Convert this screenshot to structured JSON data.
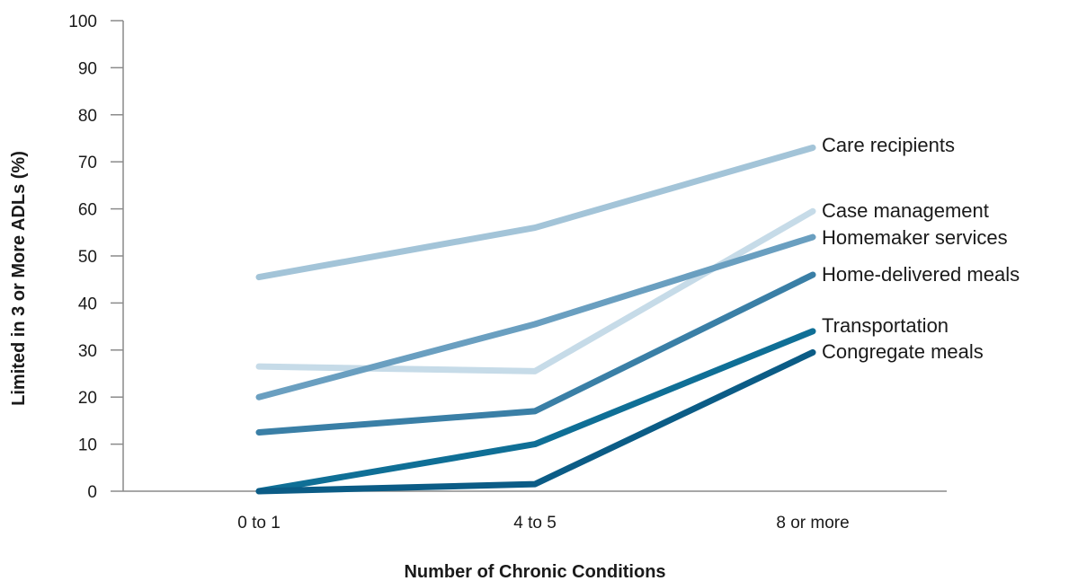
{
  "chart_data": {
    "type": "line",
    "categories": [
      "0 to 1",
      "4 to 5",
      "8 or more"
    ],
    "xlabel": "Number of Chronic Conditions",
    "ylabel": "Limited in 3 or More ADLs (%)",
    "ylim": [
      0,
      100
    ],
    "yticks": [
      0,
      10,
      20,
      30,
      40,
      50,
      60,
      70,
      80,
      90,
      100
    ],
    "grid": false,
    "legend": "direct labels at right end of lines",
    "series": [
      {
        "name": "Care recipients",
        "values": [
          45.5,
          56,
          73
        ],
        "color": "#a3c4d8"
      },
      {
        "name": "Case management",
        "values": [
          26.5,
          25.5,
          59.5
        ],
        "color": "#c6dbe8"
      },
      {
        "name": "Homemaker services",
        "values": [
          20,
          35.5,
          54
        ],
        "color": "#6a9fc0"
      },
      {
        "name": "Home-delivered meals",
        "values": [
          12.5,
          17,
          46
        ],
        "color": "#3a7fa6"
      },
      {
        "name": "Transportation",
        "values": [
          0,
          10,
          34
        ],
        "color": "#0f6f96"
      },
      {
        "name": "Congregate meals",
        "values": [
          0,
          1.5,
          29.5
        ],
        "color": "#0b5c86"
      }
    ]
  }
}
